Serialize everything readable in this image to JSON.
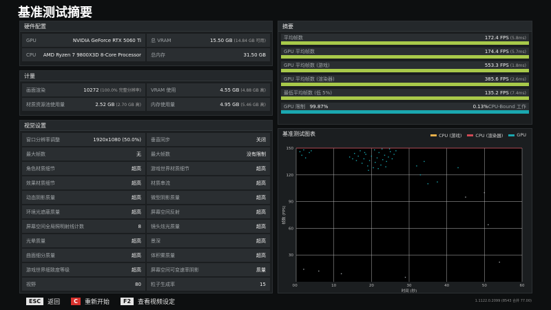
{
  "page_title": "基准测试摘要",
  "hardware": {
    "header": "硬件配置",
    "items": [
      {
        "k": "GPU",
        "v": "NVIDIA GeForce RTX 5060 Ti",
        "sub": ""
      },
      {
        "k": "总 VRAM",
        "v": "15.50 GB",
        "sub": "(14.84 GB 可用)"
      },
      {
        "k": "CPU",
        "v": "AMD Ryzen 7 9800X3D 8-Core Processor",
        "sub": ""
      },
      {
        "k": "总内存",
        "v": "31.50 GB",
        "sub": ""
      }
    ]
  },
  "metrics": {
    "header": "计量",
    "items": [
      {
        "k": "画面渲染",
        "v": "10272",
        "sub": "(100.0% 完整分辨率)"
      },
      {
        "k": "VRAM 使用",
        "v": "4.55 GB",
        "sub": "(4.88 GB 高)"
      },
      {
        "k": "材质资源池使用量",
        "v": "2.52 GB",
        "sub": "(2.70 GB 高)"
      },
      {
        "k": "内存使用量",
        "v": "4.95 GB",
        "sub": "(5.46 GB 高)"
      }
    ]
  },
  "visual": {
    "header": "视觉设置",
    "items": [
      {
        "k": "窗口分辨率调整",
        "v": "1920x1080 (50.0%)"
      },
      {
        "k": "垂直同步",
        "v": "关闭"
      },
      {
        "k": "最大帧数",
        "v": "无"
      },
      {
        "k": "最大帧数",
        "v": "没有限制"
      },
      {
        "k": "角色材质细节",
        "v": "超高"
      },
      {
        "k": "游戏世界材质细节",
        "v": "超高"
      },
      {
        "k": "效果材质细节",
        "v": "超高"
      },
      {
        "k": "材质串流",
        "v": "超高"
      },
      {
        "k": "动态阴影质量",
        "v": "超高"
      },
      {
        "k": "微型阴影质量",
        "v": "超高"
      },
      {
        "k": "环境光遮蔽质量",
        "v": "超高"
      },
      {
        "k": "屏幕空间反射",
        "v": "超高"
      },
      {
        "k": "屏幕空间全局照明射线计数",
        "v": "8"
      },
      {
        "k": "镜头炫光质量",
        "v": "超高"
      },
      {
        "k": "光晕质量",
        "v": "超高"
      },
      {
        "k": "景深",
        "v": "超高"
      },
      {
        "k": "曲面细分质量",
        "v": "超高"
      },
      {
        "k": "体积雾质量",
        "v": "超高"
      },
      {
        "k": "游戏世界细致度等级",
        "v": "超高"
      },
      {
        "k": "屏幕空间可变速率阴影",
        "v": "质量"
      },
      {
        "k": "视野",
        "v": "80"
      },
      {
        "k": "粒子生成率",
        "v": "15"
      }
    ]
  },
  "summary": {
    "header": "摘要",
    "rows": [
      {
        "k": "平均帧数",
        "v": "172.4 FPS",
        "sub": "(5.8ms)",
        "fill": 1.0
      },
      {
        "k": "GPU 平均帧数",
        "v": "174.4 FPS",
        "sub": "(5.7ms)",
        "fill": 1.0
      },
      {
        "k": "GPU 平均帧数 (游戏)",
        "v": "553.3 FPS",
        "sub": "(1.8ms)",
        "fill": 1.0
      },
      {
        "k": "GPU 平均帧数 (渲染器)",
        "v": "385.6 FPS",
        "sub": "(2.6ms)",
        "fill": 1.0
      },
      {
        "k": "最低平均帧数 (低 5%)",
        "v": "135.2 FPS",
        "sub": "(7.4ms)",
        "fill": 1.0
      }
    ],
    "limit": {
      "k": "GPU 限制",
      "pct": "99.87%",
      "right_pct": "0.13%",
      "right_label": "CPU-Bound 工作",
      "fill": 0.9987
    }
  },
  "chart_data": {
    "type": "scatter",
    "title": "基准测试图表",
    "xlabel": "时间 (秒)",
    "ylabel": "帧数 (FPS)",
    "xlim": [
      0,
      60
    ],
    "ylim": [
      0,
      150
    ],
    "xticks": [
      0,
      10,
      20,
      30,
      40,
      50,
      60
    ],
    "yticks": [
      30,
      60,
      90,
      120,
      150
    ],
    "grid": true,
    "legend_placement": "top-right",
    "series": [
      {
        "name": "CPU (游戏)",
        "color": "#e8b04a",
        "values": []
      },
      {
        "name": "CPU (渲染器)",
        "color": "#d04a55",
        "values": []
      },
      {
        "name": "GPU",
        "color": "#1aa7b0",
        "points": [
          [
            1.0,
            146
          ],
          [
            1.5,
            142
          ],
          [
            2.0,
            148
          ],
          [
            2.5,
            139
          ],
          [
            3.5,
            145
          ],
          [
            4.0,
            147
          ],
          [
            14.2,
            140
          ],
          [
            15.0,
            138
          ],
          [
            15.5,
            144
          ],
          [
            16.0,
            136
          ],
          [
            16.5,
            141
          ],
          [
            17.0,
            147
          ],
          [
            17.5,
            133
          ],
          [
            18.0,
            138
          ],
          [
            18.5,
            143
          ],
          [
            19.0,
            130
          ],
          [
            19.5,
            136
          ],
          [
            20.0,
            141
          ],
          [
            20.5,
            128
          ],
          [
            21.0,
            134
          ],
          [
            21.5,
            139
          ],
          [
            22.0,
            145
          ],
          [
            22.5,
            131
          ],
          [
            23.0,
            137
          ],
          [
            23.5,
            142
          ],
          [
            24.0,
            135
          ],
          [
            24.5,
            140
          ],
          [
            25.0,
            146
          ],
          [
            25.5,
            138
          ],
          [
            26.0,
            143
          ],
          [
            26.5,
            147
          ],
          [
            19.2,
            125
          ],
          [
            21.8,
            127
          ],
          [
            23.8,
            129
          ],
          [
            18.2,
            145
          ],
          [
            20.8,
            148
          ],
          [
            22.8,
            149
          ],
          [
            24.8,
            149
          ],
          [
            32.0,
            130
          ],
          [
            33.0,
            120
          ],
          [
            34.0,
            135
          ],
          [
            35.0,
            110
          ],
          [
            37.5,
            112
          ],
          [
            43.0,
            128
          ],
          [
            45.0,
            95
          ],
          [
            50.0,
            100
          ],
          [
            51.0,
            64
          ],
          [
            54.0,
            22
          ],
          [
            2.0,
            14
          ],
          [
            6.0,
            12
          ],
          [
            12.0,
            9
          ],
          [
            29.0,
            5
          ]
        ]
      }
    ]
  },
  "footer": {
    "esc_key": "ESC",
    "esc_label": "返回",
    "c_key": "C",
    "c_label": "重新开始",
    "f2_key": "F2",
    "f2_label": "查看视频设定"
  },
  "version": "1.1122.0.2099 (8543 合并 77.00)"
}
